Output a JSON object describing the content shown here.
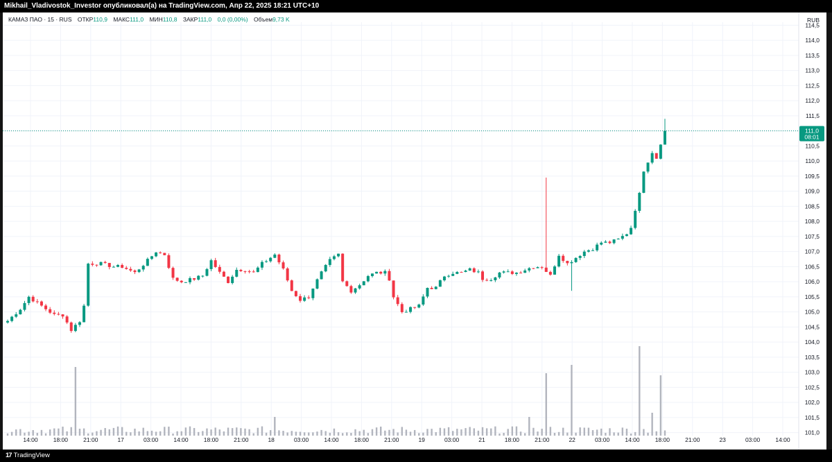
{
  "header": {
    "publish_line": "Mikhail_Vladivostok_Investor опубликовал(а) на TradingView.com, Апр 22, 2025 18:21 UTC+10"
  },
  "legend": {
    "symbol": "КАМАЗ ПАО · 15 · RUS",
    "open_label": "ОТКР",
    "open_value": "110,9",
    "high_label": "МАКС",
    "high_value": "111,0",
    "low_label": "МИН",
    "low_value": "110,8",
    "close_label": "ЗАКР",
    "close_value": "111,0",
    "change_value": "0,0 (0,00%)",
    "volume_label": "Объем",
    "volume_value": "9,73 K"
  },
  "axis": {
    "currency": "RUB",
    "last_price": "111,0",
    "countdown": "08:01"
  },
  "footer": {
    "logo": "17",
    "brand": "TradingView"
  },
  "colors": {
    "up": "#089981",
    "down": "#f23645",
    "volume": "#b2b5be",
    "grid": "#f0f3fa",
    "price_line": "#089981"
  },
  "chart_data": {
    "type": "candlestick",
    "title": "КАМАЗ ПАО · 15 · RUS",
    "y_ticks": [
      "101,0",
      "101,5",
      "102,0",
      "102,5",
      "103,0",
      "103,5",
      "104,0",
      "104,5",
      "105,0",
      "105,5",
      "106,0",
      "106,5",
      "107,0",
      "107,5",
      "108,0",
      "108,5",
      "109,0",
      "109,5",
      "110,0",
      "110,5",
      "111,0",
      "111,5",
      "112,0",
      "112,5",
      "113,0",
      "113,5",
      "114,0",
      "114,5"
    ],
    "ylim": [
      100.9,
      114.6
    ],
    "x_ticks": [
      "14:00",
      "18:00",
      "21:00",
      "17",
      "03:00",
      "14:00",
      "18:00",
      "21:00",
      "18",
      "03:00",
      "14:00",
      "18:00",
      "21:00",
      "19",
      "03:00",
      "21",
      "18:00",
      "21:00",
      "22",
      "03:00",
      "14:00",
      "18:00",
      "21:00",
      "23",
      "03:00",
      "14:00"
    ],
    "last_price": 111.0,
    "ohlc_anchors": [
      [
        0,
        104.7
      ],
      [
        3,
        105.1
      ],
      [
        5,
        105.5
      ],
      [
        8,
        105.2
      ],
      [
        11,
        104.9
      ],
      [
        13,
        104.9
      ],
      [
        15,
        104.4
      ],
      [
        17,
        104.7
      ],
      [
        18,
        105.2
      ],
      [
        19,
        106.6
      ],
      [
        22,
        106.6
      ],
      [
        25,
        106.5
      ],
      [
        27,
        106.5
      ],
      [
        30,
        106.3
      ],
      [
        33,
        106.7
      ],
      [
        35,
        107.0
      ],
      [
        37,
        106.9
      ],
      [
        39,
        106.1
      ],
      [
        41,
        106.0
      ],
      [
        44,
        106.1
      ],
      [
        46,
        106.2
      ],
      [
        48,
        106.7
      ],
      [
        50,
        106.3
      ],
      [
        52,
        106.0
      ],
      [
        54,
        106.4
      ],
      [
        56,
        106.4
      ],
      [
        58,
        106.3
      ],
      [
        60,
        106.6
      ],
      [
        62,
        106.8
      ],
      [
        63,
        106.9
      ],
      [
        65,
        106.4
      ],
      [
        67,
        105.7
      ],
      [
        69,
        105.4
      ],
      [
        71,
        105.5
      ],
      [
        72,
        105.8
      ],
      [
        74,
        106.3
      ],
      [
        76,
        106.7
      ],
      [
        78,
        106.9
      ],
      [
        79,
        106.0
      ],
      [
        81,
        105.7
      ],
      [
        83,
        105.9
      ],
      [
        85,
        106.2
      ],
      [
        87,
        106.3
      ],
      [
        89,
        106.3
      ],
      [
        90,
        106.1
      ],
      [
        91,
        105.5
      ],
      [
        93,
        105.0
      ],
      [
        95,
        105.1
      ],
      [
        97,
        105.2
      ],
      [
        99,
        105.8
      ],
      [
        101,
        105.8
      ],
      [
        103,
        106.2
      ],
      [
        105,
        106.3
      ],
      [
        107,
        106.3
      ],
      [
        109,
        106.4
      ],
      [
        111,
        106.3
      ],
      [
        112,
        106.1
      ],
      [
        114,
        106.1
      ],
      [
        116,
        106.3
      ],
      [
        118,
        106.3
      ],
      [
        120,
        106.3
      ],
      [
        122,
        106.4
      ],
      [
        124,
        106.5
      ],
      [
        126,
        106.5
      ],
      [
        128,
        106.2
      ],
      [
        130,
        106.9
      ],
      [
        132,
        106.6
      ],
      [
        134,
        106.8
      ],
      [
        136,
        107.0
      ],
      [
        138,
        107.1
      ],
      [
        140,
        107.3
      ],
      [
        142,
        107.3
      ],
      [
        144,
        107.4
      ],
      [
        146,
        107.6
      ],
      [
        147,
        107.8
      ],
      [
        148,
        108.4
      ],
      [
        149,
        108.9
      ],
      [
        150,
        109.7
      ],
      [
        151,
        110.0
      ],
      [
        152,
        110.3
      ],
      [
        153,
        110.1
      ],
      [
        154,
        110.6
      ],
      [
        155,
        111.0
      ]
    ],
    "volume_peaks": [
      [
        16,
        3.3
      ],
      [
        63,
        0.9
      ],
      [
        123,
        0.9
      ],
      [
        127,
        3.0
      ],
      [
        133,
        3.4
      ],
      [
        149,
        4.3
      ],
      [
        152,
        1.1
      ],
      [
        154,
        2.9
      ]
    ]
  }
}
